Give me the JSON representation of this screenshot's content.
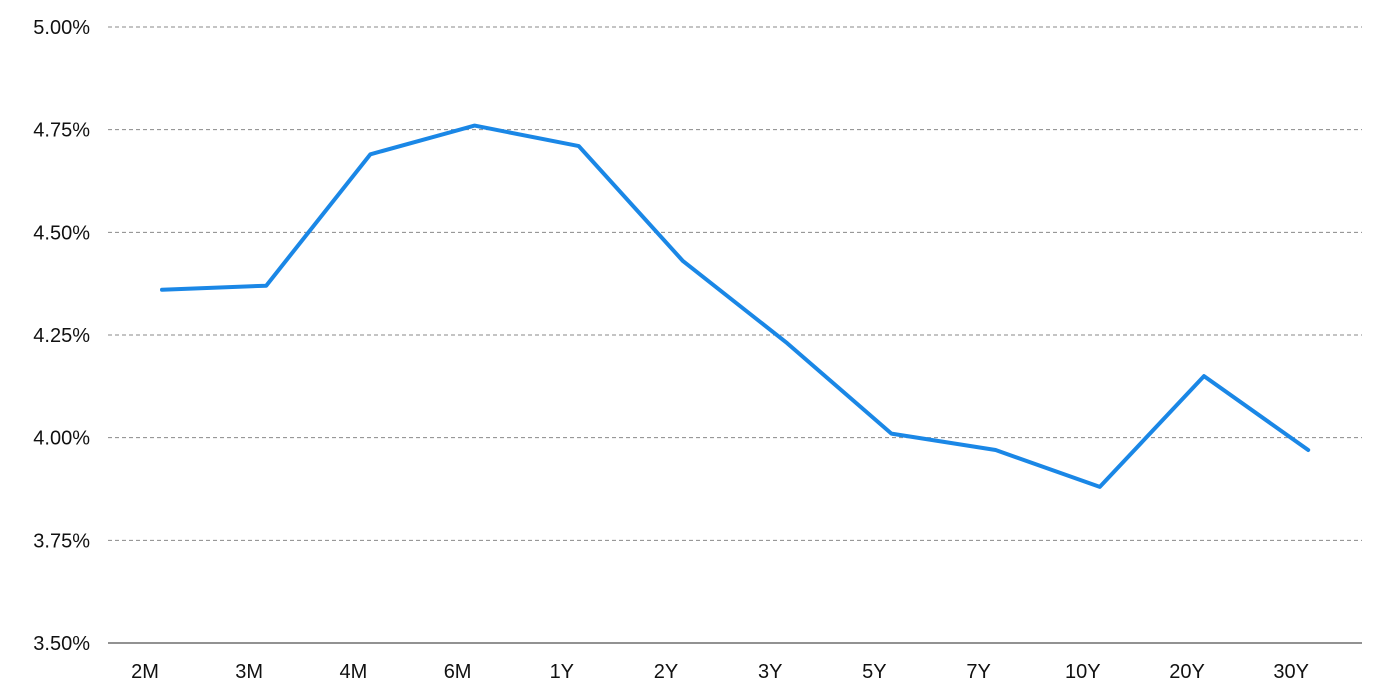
{
  "chart_data": {
    "type": "line",
    "title": "",
    "xlabel": "",
    "ylabel": "",
    "categories": [
      "2M",
      "3M",
      "4M",
      "6M",
      "1Y",
      "2Y",
      "3Y",
      "5Y",
      "7Y",
      "10Y",
      "20Y",
      "30Y"
    ],
    "series": [
      {
        "color": "#1a87e6",
        "values": [
          4.36,
          4.37,
          4.69,
          4.76,
          4.71,
          4.43,
          4.23,
          4.01,
          3.97,
          3.88,
          4.15,
          3.97
        ]
      }
    ],
    "ylim": [
      3.5,
      5.0
    ],
    "yticks": [
      3.5,
      3.75,
      4.0,
      4.25,
      4.5,
      4.75,
      5.0
    ],
    "ytick_labels": [
      "3.50%",
      "3.75%",
      "4.00%",
      "4.25%",
      "4.50%",
      "4.75%",
      "5.00%"
    ],
    "grid": true,
    "grid_style": "dashed horizontal",
    "legend": "none"
  }
}
